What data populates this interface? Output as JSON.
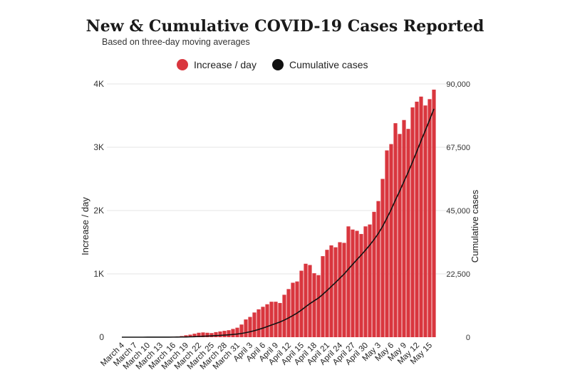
{
  "chart_data": {
    "type": "bar",
    "title": "New & Cumulative COVID-19 Cases Reported",
    "subtitle": "Based on three-day moving averages",
    "ylabel_left": "Increase / day",
    "ylabel_right": "Cumulative cases",
    "legend": [
      {
        "label": "Increase / day",
        "color": "#d9363e",
        "marker": "dot"
      },
      {
        "label": "Cumulative cases",
        "color": "#111111",
        "marker": "dot"
      }
    ],
    "ylim_left": [
      0,
      4000
    ],
    "ylim_right": [
      0,
      90000
    ],
    "left_ticks": [
      {
        "value": 0,
        "label": "0"
      },
      {
        "value": 1000,
        "label": "1K"
      },
      {
        "value": 2000,
        "label": "2K"
      },
      {
        "value": 3000,
        "label": "3K"
      },
      {
        "value": 4000,
        "label": "4K"
      }
    ],
    "right_ticks": [
      {
        "value": 0,
        "label": "0"
      },
      {
        "value": 22500,
        "label": "22,500"
      },
      {
        "value": 45000,
        "label": "45,000"
      },
      {
        "value": 67500,
        "label": "67,500"
      },
      {
        "value": 90000,
        "label": "90,000"
      }
    ],
    "x_tick_labels": [
      {
        "index": 0,
        "label": "March 4"
      },
      {
        "index": 3,
        "label": "March 7"
      },
      {
        "index": 6,
        "label": "March 10"
      },
      {
        "index": 9,
        "label": "March 13"
      },
      {
        "index": 12,
        "label": "March 16"
      },
      {
        "index": 15,
        "label": "March 19"
      },
      {
        "index": 18,
        "label": "March 22"
      },
      {
        "index": 21,
        "label": "March 25"
      },
      {
        "index": 24,
        "label": "March 28"
      },
      {
        "index": 27,
        "label": "March 31"
      },
      {
        "index": 30,
        "label": "April 3"
      },
      {
        "index": 33,
        "label": "April 6"
      },
      {
        "index": 36,
        "label": "April 9"
      },
      {
        "index": 39,
        "label": "April 12"
      },
      {
        "index": 42,
        "label": "April 15"
      },
      {
        "index": 45,
        "label": "April 18"
      },
      {
        "index": 48,
        "label": "April 21"
      },
      {
        "index": 51,
        "label": "April 24"
      },
      {
        "index": 54,
        "label": "April 27"
      },
      {
        "index": 57,
        "label": "April 30"
      },
      {
        "index": 60,
        "label": "May 3"
      },
      {
        "index": 63,
        "label": "May 6"
      },
      {
        "index": 66,
        "label": "May 9"
      },
      {
        "index": 69,
        "label": "May 12"
      },
      {
        "index": 72,
        "label": "May 15"
      }
    ],
    "series": [
      {
        "name": "Increase / day",
        "kind": "bar",
        "axis": "left",
        "values": [
          0,
          0,
          0,
          0,
          0,
          1,
          1,
          2,
          3,
          3,
          4,
          5,
          8,
          12,
          18,
          30,
          40,
          55,
          70,
          75,
          70,
          65,
          80,
          90,
          100,
          110,
          130,
          150,
          200,
          280,
          320,
          390,
          440,
          480,
          520,
          560,
          560,
          540,
          670,
          760,
          860,
          880,
          1050,
          1160,
          1140,
          1010,
          980,
          1280,
          1380,
          1450,
          1420,
          1500,
          1490,
          1750,
          1700,
          1680,
          1630,
          1750,
          1780,
          1980,
          2150,
          2500,
          2950,
          3050,
          3380,
          3210,
          3430,
          3290,
          3630,
          3720,
          3800,
          3660,
          3760,
          3910
        ]
      },
      {
        "name": "Cumulative cases",
        "kind": "line",
        "axis": "right",
        "values": [
          0,
          0,
          1,
          1,
          2,
          3,
          4,
          6,
          9,
          12,
          16,
          22,
          30,
          42,
          60,
          90,
          130,
          185,
          255,
          330,
          400,
          465,
          545,
          635,
          735,
          845,
          975,
          1125,
          1325,
          1605,
          1925,
          2315,
          2755,
          3235,
          3755,
          4315,
          4875,
          5415,
          6085,
          6845,
          7705,
          8585,
          9635,
          10795,
          11935,
          12945,
          13925,
          15205,
          16585,
          18035,
          19455,
          20955,
          22445,
          24195,
          25895,
          27575,
          29205,
          30955,
          32735,
          34715,
          36865,
          39365,
          42315,
          45365,
          48745,
          51955,
          55385,
          58675,
          62305,
          66025,
          69825,
          73485,
          77245,
          81155
        ]
      }
    ]
  }
}
